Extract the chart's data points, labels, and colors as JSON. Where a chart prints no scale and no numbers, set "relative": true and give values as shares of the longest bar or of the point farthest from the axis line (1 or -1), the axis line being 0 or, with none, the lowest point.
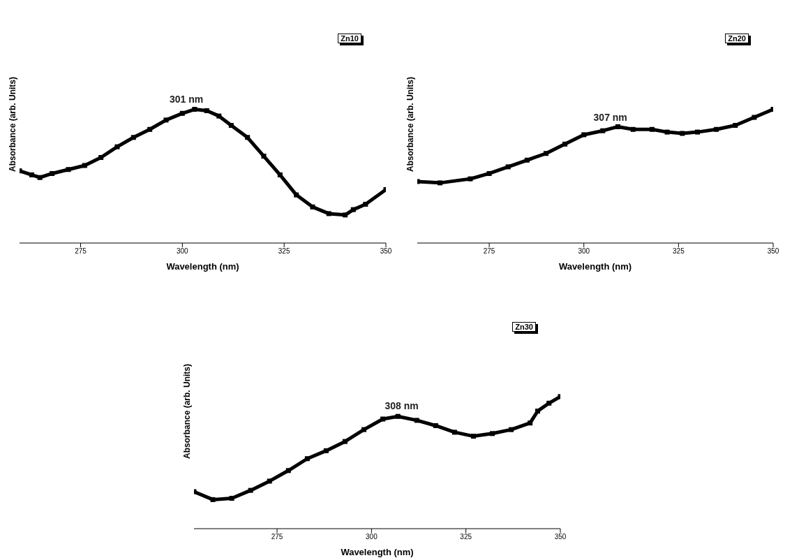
{
  "chart_data": [
    {
      "type": "line",
      "relative": true,
      "xlabel": "Wavelength (nm)",
      "ylabel": "Absorbance (arb. Units)",
      "x": [
        260,
        263,
        265,
        268,
        272,
        276,
        280,
        284,
        288,
        292,
        296,
        300,
        303,
        306,
        309,
        312,
        316,
        320,
        324,
        328,
        332,
        336,
        340,
        342,
        345,
        350
      ],
      "series": [
        {
          "color": "#000000",
          "values": [
            0.54,
            0.51,
            0.49,
            0.52,
            0.55,
            0.58,
            0.64,
            0.72,
            0.79,
            0.85,
            0.92,
            0.97,
            1,
            0.99,
            0.95,
            0.88,
            0.79,
            0.65,
            0.51,
            0.36,
            0.27,
            0.22,
            0.21,
            0.25,
            0.29,
            0.4
          ]
        }
      ],
      "xlim": [
        260,
        350
      ],
      "xticks": [
        275,
        300,
        325,
        350
      ],
      "marker": "square",
      "annotations": [
        "Zn10",
        {
          "text": "301 nm",
          "x": 301,
          "y": 1
        }
      ]
    },
    {
      "type": "line",
      "relative": true,
      "xlabel": "Wavelength (nm)",
      "ylabel": "Absorbance (arb. Units)",
      "x": [
        256,
        262,
        270,
        275,
        280,
        285,
        290,
        295,
        300,
        305,
        309,
        313,
        318,
        322,
        326,
        330,
        335,
        340,
        345,
        350
      ],
      "series": [
        {
          "color": "#000000",
          "values": [
            0.46,
            0.45,
            0.48,
            0.52,
            0.57,
            0.62,
            0.67,
            0.74,
            0.81,
            0.84,
            0.87,
            0.85,
            0.85,
            0.83,
            0.82,
            0.83,
            0.85,
            0.88,
            0.94,
            1
          ]
        }
      ],
      "xlim": [
        256,
        350
      ],
      "xticks": [
        275,
        300,
        325,
        350
      ],
      "marker": "square",
      "annotations": [
        "Zn20",
        {
          "text": "307 nm",
          "x": 307,
          "y": 0.86
        }
      ]
    },
    {
      "type": "line",
      "relative": true,
      "xlabel": "Wavelength (nm)",
      "ylabel": "Absorbance (arb. Units)",
      "x": [
        253,
        258,
        263,
        268,
        273,
        278,
        283,
        288,
        293,
        298,
        303,
        307,
        312,
        317,
        322,
        327,
        332,
        337,
        342,
        344,
        347,
        350
      ],
      "series": [
        {
          "color": "#000000",
          "values": [
            0.28,
            0.22,
            0.23,
            0.29,
            0.36,
            0.44,
            0.53,
            0.59,
            0.66,
            0.75,
            0.83,
            0.85,
            0.82,
            0.78,
            0.73,
            0.7,
            0.72,
            0.75,
            0.8,
            0.89,
            0.95,
            1
          ]
        }
      ],
      "xlim": [
        253,
        350
      ],
      "xticks": [
        275,
        300,
        325,
        350
      ],
      "marker": "square",
      "annotations": [
        "Zn30",
        {
          "text": "308 nm",
          "x": 308,
          "y": 0.85
        }
      ]
    }
  ]
}
